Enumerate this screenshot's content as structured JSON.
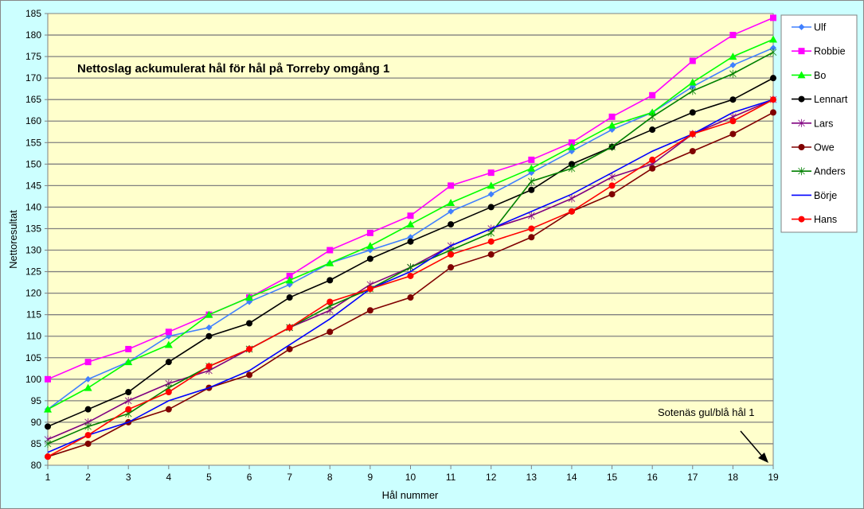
{
  "chart_data": {
    "type": "line",
    "title": "Nettoslag ackumulerat hål för hål på Torreby omgång 1",
    "xlabel": "Hål nummer",
    "ylabel": "Nettoresultat",
    "annotation": "Sotenäs gul/blå hål 1",
    "ylim": [
      80,
      185
    ],
    "yticks": [
      80,
      85,
      90,
      95,
      100,
      105,
      110,
      115,
      120,
      125,
      130,
      135,
      140,
      145,
      150,
      155,
      160,
      165,
      170,
      175,
      180,
      185
    ],
    "x": [
      1,
      2,
      3,
      4,
      5,
      6,
      7,
      8,
      9,
      10,
      11,
      12,
      13,
      14,
      15,
      16,
      17,
      18,
      19
    ],
    "grid": true,
    "legend_position": "right",
    "plot_background": "#FFFFCC",
    "series": [
      {
        "name": "Ulf",
        "color": "#4080FF",
        "marker": "diamond",
        "values": [
          93,
          100,
          104,
          110,
          112,
          118,
          122,
          127,
          130,
          133,
          139,
          143,
          148,
          153,
          158,
          162,
          168,
          173,
          177
        ]
      },
      {
        "name": "Robbie",
        "color": "#FF00FF",
        "marker": "square",
        "values": [
          100,
          104,
          107,
          111,
          115,
          119,
          124,
          130,
          134,
          138,
          145,
          148,
          151,
          155,
          161,
          166,
          174,
          180,
          184
        ]
      },
      {
        "name": "Bo",
        "color": "#00FF00",
        "marker": "triangle",
        "values": [
          93,
          98,
          104,
          108,
          115,
          119,
          123,
          127,
          131,
          136,
          141,
          145,
          149,
          154,
          159,
          162,
          169,
          175,
          179
        ]
      },
      {
        "name": "Lennart",
        "color": "#000000",
        "marker": "circle",
        "values": [
          89,
          93,
          97,
          104,
          110,
          113,
          119,
          123,
          128,
          132,
          136,
          140,
          144,
          150,
          154,
          158,
          162,
          165,
          170
        ]
      },
      {
        "name": "Lars",
        "color": "#800080",
        "marker": "asterisk",
        "values": [
          86,
          90,
          95,
          99,
          102,
          107,
          112,
          116,
          122,
          126,
          131,
          135,
          138,
          142,
          147,
          150,
          157,
          161,
          165
        ]
      },
      {
        "name": "Owe",
        "color": "#800000",
        "marker": "circle",
        "values": [
          82,
          85,
          90,
          93,
          98,
          101,
          107,
          111,
          116,
          119,
          126,
          129,
          133,
          139,
          143,
          149,
          153,
          157,
          162
        ]
      },
      {
        "name": "Anders",
        "color": "#008000",
        "marker": "asterisk",
        "values": [
          85,
          89,
          92,
          98,
          103,
          107,
          112,
          117,
          121,
          126,
          130,
          134,
          146,
          149,
          154,
          161,
          167,
          171,
          176
        ]
      },
      {
        "name": "Börje",
        "color": "#0000FF",
        "marker": "none",
        "values": [
          83,
          87,
          90,
          95,
          98,
          102,
          108,
          114,
          121,
          125,
          131,
          135,
          139,
          143,
          148,
          153,
          157,
          162,
          165
        ]
      },
      {
        "name": "Hans",
        "color": "#FF0000",
        "marker": "circle",
        "values": [
          82,
          87,
          93,
          97,
          103,
          107,
          112,
          118,
          121,
          124,
          129,
          132,
          135,
          139,
          145,
          151,
          157,
          160,
          165
        ]
      }
    ]
  }
}
